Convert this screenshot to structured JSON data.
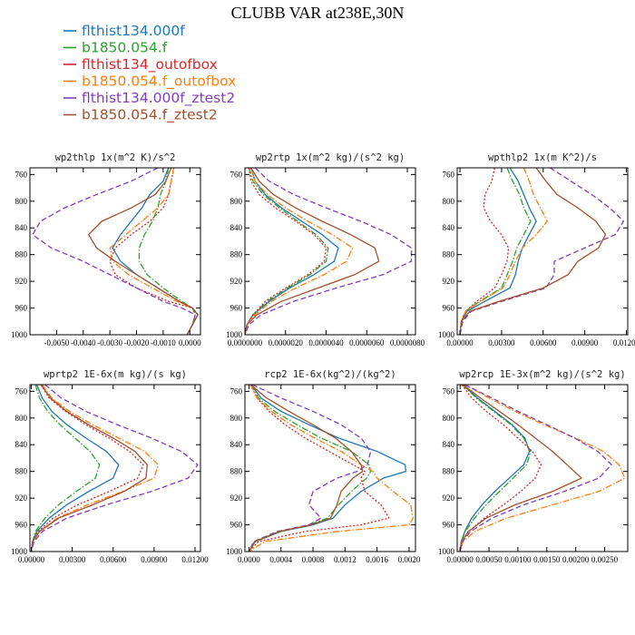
{
  "figure_title": "CLUBB VAR at238E,30N",
  "legend": [
    {
      "label": "flthist134.000f",
      "color": "#1f77b4",
      "dash": "solid"
    },
    {
      "label": "b1850.054.f",
      "color": "#2ca02c",
      "dash": "dashdot"
    },
    {
      "label": "flthist134_outofbox",
      "color": "#d62728",
      "dash": "dotted"
    },
    {
      "label": "b1850.054.f_outofbox",
      "color": "#ff7f0e",
      "dash": "dashdot"
    },
    {
      "label": "flthist134.000f_ztest2",
      "color": "#7f3fbf",
      "dash": "dashed"
    },
    {
      "label": "b1850.054.f_ztest2",
      "color": "#a0522d",
      "dash": "solid"
    }
  ],
  "chart_data": [
    {
      "type": "line",
      "title": "wp2thlp   1x(m^2 K)/s^2",
      "xlim": [
        -0.006,
        0.0004
      ],
      "ylim": [
        1000,
        750
      ],
      "xticks": [
        -0.005,
        -0.004,
        -0.003,
        -0.002,
        -0.001,
        0.0
      ],
      "xticklabels": [
        "-0.0050",
        "-0.0040",
        "-0.0030",
        "-0.0020",
        "-0.0010",
        "0.0000"
      ],
      "yticks": [
        760,
        800,
        840,
        880,
        920,
        960,
        1000
      ],
      "y": [
        750,
        770,
        790,
        810,
        830,
        850,
        870,
        890,
        910,
        930,
        950,
        960,
        970,
        985,
        1000
      ],
      "series": [
        {
          "name": "flthist134.000f",
          "values": [
            -0.0008,
            -0.001,
            -0.0015,
            -0.0018,
            -0.0022,
            -0.0026,
            -0.0029,
            -0.0026,
            -0.002,
            -0.0012,
            -0.0004,
            0.0001,
            0.0003,
            0.0001,
            -0.0001
          ]
        },
        {
          "name": "b1850.054.f",
          "values": [
            -0.0008,
            -0.0009,
            -0.0011,
            -0.0012,
            -0.0014,
            -0.0017,
            -0.0019,
            -0.0019,
            -0.0016,
            -0.001,
            -0.0003,
            0.0001,
            0.0002,
            0.0001,
            -0.0001
          ]
        },
        {
          "name": "flthist134_outofbox",
          "values": [
            -0.0006,
            -0.0007,
            -0.0008,
            -0.001,
            -0.0015,
            -0.0022,
            -0.0028,
            -0.003,
            -0.0028,
            -0.002,
            -0.0008,
            0.0001,
            0.0003,
            0.0001,
            -0.0001
          ]
        },
        {
          "name": "b1850.054.f_outofbox",
          "values": [
            -0.0006,
            -0.0007,
            -0.0008,
            -0.0012,
            -0.0018,
            -0.0024,
            -0.003,
            -0.0029,
            -0.0023,
            -0.0014,
            -0.0005,
            0.0001,
            0.0003,
            0.0001,
            -0.0001
          ]
        },
        {
          "name": "flthist134.000f_ztest2",
          "values": [
            -0.0012,
            -0.0022,
            -0.0035,
            -0.0047,
            -0.0056,
            -0.0059,
            -0.0052,
            -0.004,
            -0.003,
            -0.002,
            -0.001,
            -0.0003,
            0.0002,
            0.0001,
            -0.0001
          ]
        },
        {
          "name": "b1850.054.f_ztest2",
          "values": [
            -0.0007,
            -0.0009,
            -0.0013,
            -0.0022,
            -0.0033,
            -0.0038,
            -0.0035,
            -0.0028,
            -0.002,
            -0.0012,
            -0.0004,
            0.0001,
            0.0003,
            0.0001,
            -0.0001
          ]
        }
      ]
    },
    {
      "type": "line",
      "title": "wp2rtp   1x(m^2 kg)/(s^2 kg)",
      "xlim": [
        0,
        8.4e-06
      ],
      "ylim": [
        1000,
        750
      ],
      "xticks": [
        0,
        2e-06,
        4e-06,
        6e-06,
        8e-06
      ],
      "xticklabels": [
        "0.0000000",
        "0.0000020",
        "0.0000040",
        "0.0000060",
        "0.0000080"
      ],
      "yticks": [
        760,
        800,
        840,
        880,
        920,
        960,
        1000
      ],
      "y": [
        750,
        770,
        790,
        810,
        830,
        850,
        870,
        890,
        910,
        930,
        950,
        970,
        985,
        1000
      ],
      "series": [
        {
          "name": "flthist134.000f",
          "values": [
            3e-07,
            5e-07,
            1e-06,
            1.8e-06,
            2.8e-06,
            3.8e-06,
            4.6e-06,
            4.4e-06,
            3.4e-06,
            2.2e-06,
            1.2e-06,
            4e-07,
            1e-07,
            0.0
          ]
        },
        {
          "name": "b1850.054.f",
          "values": [
            2e-07,
            4e-07,
            9e-07,
            1.7e-06,
            2.6e-06,
            3.5e-06,
            4.1e-06,
            4e-06,
            3.2e-06,
            2.1e-06,
            1.1e-06,
            4e-07,
            1e-07,
            0.0
          ]
        },
        {
          "name": "flthist134_outofbox",
          "values": [
            2e-07,
            3e-07,
            7e-07,
            1.5e-06,
            2.5e-06,
            3.4e-06,
            4e-06,
            3.9e-06,
            3.1e-06,
            2e-06,
            1e-06,
            4e-07,
            1e-07,
            0.0
          ]
        },
        {
          "name": "b1850.054.f_outofbox",
          "values": [
            3e-07,
            5e-07,
            1.1e-06,
            2e-06,
            3.1e-06,
            4.3e-06,
            5.3e-06,
            5e-06,
            3.9e-06,
            2.5e-06,
            1.3e-06,
            5e-07,
            1e-07,
            0.0
          ]
        },
        {
          "name": "flthist134.000f_ztest2",
          "values": [
            5e-07,
            1.2e-06,
            2.4e-06,
            4e-06,
            5.7e-06,
            7.2e-06,
            8.2e-06,
            8.2e-06,
            6.8e-06,
            4.5e-06,
            2.4e-06,
            8e-07,
            2e-07,
            0.0
          ]
        },
        {
          "name": "b1850.054.f_ztest2",
          "values": [
            3e-07,
            7e-07,
            1.4e-06,
            2.5e-06,
            3.8e-06,
            5.2e-06,
            6.4e-06,
            6.6e-06,
            5.4e-06,
            3.6e-06,
            1.8e-06,
            6e-07,
            1e-07,
            0.0
          ]
        }
      ]
    },
    {
      "type": "line",
      "title": "wpthlp2   1x(m K^2)/s",
      "xlim": [
        -0.0002,
        0.0121
      ],
      "ylim": [
        1000,
        750
      ],
      "xticks": [
        0,
        0.003,
        0.006,
        0.009,
        0.012
      ],
      "xticklabels": [
        "0.00000",
        "0.00300",
        "0.00600",
        "0.00900",
        "0.01200"
      ],
      "yticks": [
        760,
        800,
        840,
        880,
        920,
        960,
        1000
      ],
      "y": [
        750,
        770,
        790,
        810,
        830,
        850,
        870,
        890,
        910,
        930,
        950,
        965,
        980,
        1000
      ],
      "series": [
        {
          "name": "flthist134.000f",
          "values": [
            0.0036,
            0.0042,
            0.0046,
            0.005,
            0.0055,
            0.005,
            0.0045,
            0.0042,
            0.004,
            0.0036,
            0.0018,
            0.0005,
            0.0001,
            0.0
          ]
        },
        {
          "name": "b1850.054.f",
          "values": [
            0.0034,
            0.0038,
            0.0043,
            0.0046,
            0.0051,
            0.0046,
            0.0041,
            0.0038,
            0.0034,
            0.003,
            0.0014,
            0.0004,
            0.0001,
            0.0
          ]
        },
        {
          "name": "flthist134_outofbox",
          "values": [
            0.0025,
            0.0023,
            0.0018,
            0.0017,
            0.0022,
            0.003,
            0.0035,
            0.0034,
            0.003,
            0.0025,
            0.0012,
            0.0004,
            0.0001,
            0.0
          ]
        },
        {
          "name": "b1850.054.f_outofbox",
          "values": [
            0.0046,
            0.005,
            0.0053,
            0.0058,
            0.0063,
            0.0055,
            0.0045,
            0.004,
            0.0036,
            0.0031,
            0.0015,
            0.0004,
            0.0001,
            0.0
          ]
        },
        {
          "name": "flthist134.000f_ztest2",
          "values": [
            0.0065,
            0.008,
            0.0095,
            0.0108,
            0.0118,
            0.0112,
            0.009,
            0.0068,
            0.0068,
            0.0062,
            0.003,
            0.0008,
            0.0002,
            0.0
          ]
        },
        {
          "name": "b1850.054.f_ztest2",
          "values": [
            0.0055,
            0.0062,
            0.007,
            0.0085,
            0.0098,
            0.0105,
            0.01,
            0.0085,
            0.0078,
            0.006,
            0.0028,
            0.0007,
            0.0001,
            0.0
          ]
        }
      ]
    },
    {
      "type": "line",
      "title": "wprtp2   1E-6x(m kg)/(s kg)",
      "xlim": [
        -0.0001,
        0.0124
      ],
      "ylim": [
        1000,
        750
      ],
      "xticks": [
        0,
        0.003,
        0.006,
        0.009,
        0.012
      ],
      "xticklabels": [
        "0.00000",
        "0.00300",
        "0.00600",
        "0.00900",
        "0.01200"
      ],
      "yticks": [
        760,
        800,
        840,
        880,
        920,
        960,
        1000
      ],
      "y": [
        750,
        770,
        790,
        810,
        830,
        850,
        870,
        890,
        910,
        930,
        950,
        970,
        985,
        1000
      ],
      "series": [
        {
          "name": "flthist134.000f",
          "values": [
            0.0004,
            0.0008,
            0.0015,
            0.0026,
            0.004,
            0.0055,
            0.0064,
            0.006,
            0.0042,
            0.0026,
            0.0013,
            0.0004,
            0.0001,
            0.0
          ]
        },
        {
          "name": "b1850.054.f",
          "values": [
            0.0003,
            0.0006,
            0.0012,
            0.0021,
            0.0032,
            0.0043,
            0.005,
            0.0047,
            0.0033,
            0.002,
            0.001,
            0.0003,
            0.0001,
            0.0
          ]
        },
        {
          "name": "flthist134_outofbox",
          "values": [
            0.0007,
            0.0013,
            0.0025,
            0.004,
            0.0057,
            0.0072,
            0.0082,
            0.0078,
            0.0057,
            0.0034,
            0.0016,
            0.0005,
            0.0001,
            0.0
          ]
        },
        {
          "name": "b1850.054.f_outofbox",
          "values": [
            0.0008,
            0.0015,
            0.0028,
            0.0045,
            0.0064,
            0.0083,
            0.0093,
            0.009,
            0.0067,
            0.0041,
            0.0019,
            0.0006,
            0.0001,
            0.0
          ]
        },
        {
          "name": "flthist134.000f_ztest2",
          "values": [
            0.001,
            0.0022,
            0.004,
            0.0063,
            0.0088,
            0.011,
            0.0122,
            0.0115,
            0.0088,
            0.0055,
            0.0026,
            0.0008,
            0.0002,
            0.0
          ]
        },
        {
          "name": "b1850.054.f_ztest2",
          "values": [
            0.0007,
            0.0014,
            0.0026,
            0.0042,
            0.006,
            0.0076,
            0.0085,
            0.0084,
            0.0068,
            0.0045,
            0.002,
            0.0006,
            0.0001,
            0.0
          ]
        }
      ]
    },
    {
      "type": "line",
      "title": "rcp2   1E-6x(kg^2)/(kg^2)",
      "xlim": [
        -5e-05,
        0.00208
      ],
      "ylim": [
        1000,
        750
      ],
      "xticks": [
        0,
        0.0004,
        0.0008,
        0.0012,
        0.0016,
        0.002
      ],
      "xticklabels": [
        "0.0000",
        "0.0004",
        "0.0008",
        "0.0012",
        "0.0016",
        "0.0020"
      ],
      "yticks": [
        760,
        800,
        840,
        880,
        920,
        960,
        1000
      ],
      "y": [
        750,
        770,
        790,
        810,
        830,
        850,
        870,
        880,
        890,
        910,
        930,
        950,
        960,
        970,
        985,
        1000
      ],
      "series": [
        {
          "name": "flthist134.000f",
          "values": [
            3e-05,
            0.00015,
            0.0004,
            0.00075,
            0.00112,
            0.0016,
            0.00195,
            0.00196,
            0.00168,
            0.0014,
            0.0012,
            0.00105,
            0.0008,
            0.0004,
            8e-05,
            0.0
          ]
        },
        {
          "name": "b1850.054.f",
          "values": [
            3e-05,
            0.00012,
            0.00032,
            0.0006,
            0.0009,
            0.00128,
            0.0015,
            0.00152,
            0.00147,
            0.00128,
            0.00112,
            0.00098,
            0.00075,
            0.0004,
            8e-05,
            0.0
          ]
        },
        {
          "name": "flthist134_outofbox",
          "values": [
            2e-05,
            0.0001,
            0.00025,
            0.00045,
            0.0007,
            0.001,
            0.0013,
            0.00145,
            0.0014,
            0.00145,
            0.00165,
            0.00175,
            0.0014,
            0.0007,
            0.00012,
            0.0
          ]
        },
        {
          "name": "b1850.054.f_outofbox",
          "values": [
            2e-05,
            0.0001,
            0.00028,
            0.00052,
            0.00082,
            0.00115,
            0.0014,
            0.00155,
            0.0016,
            0.0018,
            0.00202,
            0.00205,
            0.002,
            0.0011,
            0.0002,
            0.0
          ]
        },
        {
          "name": "flthist134.000f_ztest2",
          "values": [
            4e-05,
            0.0004,
            0.0008,
            0.00115,
            0.0014,
            0.00152,
            0.00148,
            0.00135,
            0.0011,
            0.0008,
            0.00075,
            0.0009,
            0.00075,
            0.00035,
            6e-05,
            0.0
          ]
        },
        {
          "name": "b1850.054.f_ztest2",
          "values": [
            2e-05,
            0.00022,
            0.0005,
            0.0008,
            0.00108,
            0.00128,
            0.0014,
            0.00142,
            0.0013,
            0.00115,
            0.0011,
            0.00102,
            0.00078,
            0.00038,
            7e-05,
            0.0
          ]
        }
      ]
    },
    {
      "type": "line",
      "title": "wp2rcp   1E-3x(m^2 kg)/(s^2 kg)",
      "xlim": [
        -5e-05,
        0.0029
      ],
      "ylim": [
        1000,
        750
      ],
      "xticks": [
        0,
        0.0005,
        0.001,
        0.0015,
        0.002,
        0.0025
      ],
      "xticklabels": [
        "0.00000",
        "0.00050",
        "0.00100",
        "0.00150",
        "0.00200",
        "0.00250"
      ],
      "yticks": [
        760,
        800,
        840,
        880,
        920,
        960,
        1000
      ],
      "y": [
        750,
        770,
        790,
        810,
        830,
        850,
        870,
        890,
        910,
        930,
        950,
        970,
        985,
        1000
      ],
      "series": [
        {
          "name": "flthist134.000f",
          "values": [
            5e-05,
            0.0003,
            0.0006,
            0.0009,
            0.00112,
            0.0012,
            0.0011,
            0.00085,
            0.0006,
            0.00038,
            0.0002,
            8e-05,
            2e-05,
            0.0
          ]
        },
        {
          "name": "b1850.054.f",
          "values": [
            4e-05,
            0.00028,
            0.00058,
            0.00088,
            0.0011,
            0.00122,
            0.00115,
            0.00092,
            0.00068,
            0.00045,
            0.00025,
            9e-05,
            2e-05,
            0.0
          ]
        },
        {
          "name": "flthist134_outofbox",
          "values": [
            3e-05,
            0.0002,
            0.00045,
            0.00075,
            0.001,
            0.00125,
            0.0014,
            0.0013,
            0.00105,
            0.00075,
            0.00042,
            0.00015,
            3e-05,
            0.0
          ]
        },
        {
          "name": "b1850.054.f_outofbox",
          "values": [
            8e-05,
            0.0005,
            0.00095,
            0.00145,
            0.002,
            0.00248,
            0.00275,
            0.00285,
            0.0024,
            0.0016,
            0.0008,
            0.00025,
            5e-05,
            0.0
          ]
        },
        {
          "name": "flthist134.000f_ztest2",
          "values": [
            8e-05,
            0.00055,
            0.001,
            0.0015,
            0.00198,
            0.00238,
            0.00262,
            0.0024,
            0.0018,
            0.0011,
            0.00055,
            0.00018,
            4e-05,
            0.0
          ]
        },
        {
          "name": "b1850.054.f_ztest2",
          "values": [
            5e-05,
            0.00035,
            0.00068,
            0.001,
            0.0013,
            0.0016,
            0.00185,
            0.0021,
            0.0016,
            0.00095,
            0.00045,
            0.00014,
            3e-05,
            0.0
          ]
        }
      ]
    }
  ]
}
